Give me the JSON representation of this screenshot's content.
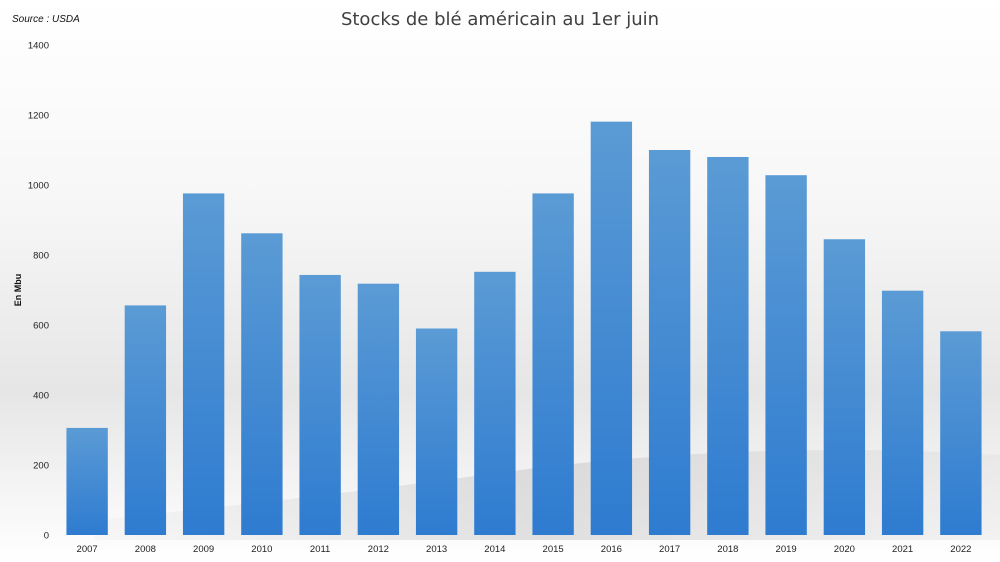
{
  "source": "Source : USDA",
  "chart_data": {
    "type": "bar",
    "title": "Stocks de blé américain au 1er juin",
    "xlabel": "",
    "ylabel": "En Mbu",
    "categories": [
      "2007",
      "2008",
      "2009",
      "2010",
      "2011",
      "2012",
      "2013",
      "2014",
      "2015",
      "2016",
      "2017",
      "2018",
      "2019",
      "2020",
      "2021",
      "2022"
    ],
    "values": [
      306,
      656,
      976,
      862,
      743,
      718,
      590,
      752,
      976,
      1181,
      1100,
      1080,
      1028,
      845,
      698,
      582
    ],
    "ylim": [
      0,
      1400
    ],
    "yticks": [
      0,
      200,
      400,
      600,
      800,
      1000,
      1200,
      1400
    ],
    "grid": false,
    "legend": "none",
    "bar_color_top": "#5b9bd5",
    "bar_color_bottom": "#2e7bd0"
  }
}
